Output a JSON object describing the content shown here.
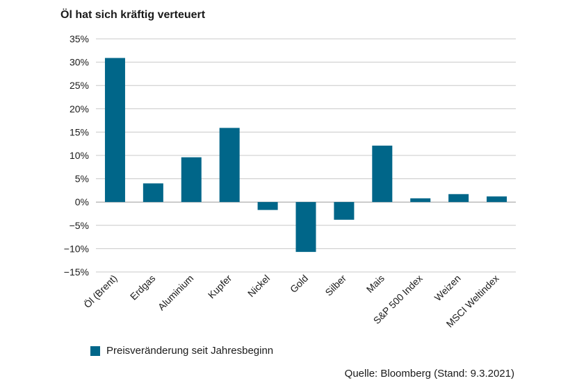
{
  "chart_data": {
    "type": "bar",
    "title": "Öl hat sich kräftig verteuert",
    "categories": [
      "Öl (Brent)",
      "Erdgas",
      "Aluminium",
      "Kupfer",
      "Nickel",
      "Gold",
      "Silber",
      "Mais",
      "S&P 500 Index",
      "Weizen",
      "MSCI Weltindex"
    ],
    "series": [
      {
        "name": "Preisveränderung seit Jahresbeginn",
        "values": [
          30.9,
          4.0,
          9.6,
          15.9,
          -1.7,
          -10.7,
          -3.8,
          12.1,
          0.8,
          1.7,
          1.2
        ],
        "color": "#006689"
      }
    ],
    "ylim": [
      -15,
      35
    ],
    "yticks": [
      35,
      30,
      25,
      20,
      15,
      10,
      5,
      0,
      -5,
      -10,
      -15
    ],
    "ytick_labels": [
      "35%",
      "30%",
      "25%",
      "20%",
      "15%",
      "10%",
      "5%",
      "0%",
      "−5%",
      "−10%",
      "−15%"
    ],
    "grid": true,
    "legend_position": "bottom-left"
  },
  "source_note": "Quelle: Bloomberg (Stand: 9.3.2021)"
}
